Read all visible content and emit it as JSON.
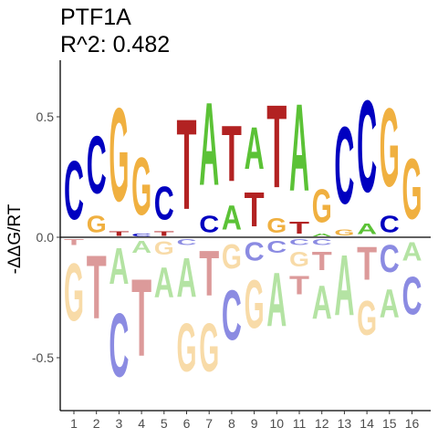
{
  "chart_data": {
    "type": "sequence-logo",
    "title": "PTF1A",
    "subtitle": "R^2: 0.482",
    "ylabel": "-ΔΔG/RT",
    "xlabel": "",
    "ylim": [
      -0.62,
      0.68
    ],
    "yticks": [
      {
        "value": 0.5,
        "label": "0.5"
      },
      {
        "value": 0.0,
        "label": "0.0"
      },
      {
        "value": -0.5,
        "label": "-0.5"
      }
    ],
    "positions": [
      "1",
      "2",
      "3",
      "4",
      "5",
      "6",
      "7",
      "8",
      "9",
      "10",
      "11",
      "12",
      "13",
      "14",
      "15",
      "16"
    ],
    "colors": {
      "A": "#5bc236",
      "C": "#0000c0",
      "G": "#f0b040",
      "T": "#b22222"
    },
    "columns": [
      {
        "pos": 1,
        "above": [
          {
            "base": "C",
            "value": 0.39
          }
        ],
        "below": [
          {
            "base": "T",
            "value": -0.04
          },
          {
            "base": "G",
            "value": -0.38
          }
        ]
      },
      {
        "pos": 2,
        "above": [
          {
            "base": "G",
            "value": 0.11
          },
          {
            "base": "C",
            "value": 0.38
          }
        ],
        "below": [
          {
            "base": "T",
            "value": -0.42
          }
        ]
      },
      {
        "pos": 3,
        "above": [
          {
            "base": "T",
            "value": 0.03
          },
          {
            "base": "G",
            "value": 0.62
          }
        ],
        "below": [
          {
            "base": "A",
            "value": -0.24
          },
          {
            "base": "C",
            "value": -0.42
          }
        ]
      },
      {
        "pos": 4,
        "above": [
          {
            "base": "C",
            "value": 0.02
          },
          {
            "base": "G",
            "value": 0.38
          }
        ],
        "below": [
          {
            "base": "A",
            "value": -0.08
          },
          {
            "base": "T",
            "value": -0.51
          }
        ]
      },
      {
        "pos": 5,
        "above": [
          {
            "base": "T",
            "value": 0.03
          },
          {
            "base": "C",
            "value": 0.22
          }
        ],
        "below": [
          {
            "base": "G",
            "value": -0.09
          },
          {
            "base": "A",
            "value": -0.2
          }
        ]
      },
      {
        "pos": 6,
        "above": [
          {
            "base": "T",
            "value": 0.6
          }
        ],
        "below": [
          {
            "base": "C",
            "value": -0.04
          },
          {
            "base": "A",
            "value": -0.26
          },
          {
            "base": "G",
            "value": -0.32
          }
        ]
      },
      {
        "pos": 7,
        "above": [
          {
            "base": "C",
            "value": 0.11
          },
          {
            "base": "A",
            "value": 0.55
          }
        ],
        "below": [
          {
            "base": "T",
            "value": -0.3
          },
          {
            "base": "G",
            "value": -0.32
          }
        ]
      },
      {
        "pos": 8,
        "above": [
          {
            "base": "A",
            "value": 0.16
          },
          {
            "base": "T",
            "value": 0.37
          }
        ],
        "below": [
          {
            "base": "G",
            "value": -0.16
          },
          {
            "base": "C",
            "value": -0.33
          }
        ]
      },
      {
        "pos": 9,
        "above": [
          {
            "base": "T",
            "value": 0.23
          },
          {
            "base": "A",
            "value": 0.28
          }
        ],
        "below": [
          {
            "base": "C",
            "value": -0.12
          },
          {
            "base": "G",
            "value": -0.32
          }
        ]
      },
      {
        "pos": 10,
        "above": [
          {
            "base": "G",
            "value": 0.1
          },
          {
            "base": "T",
            "value": 0.55
          }
        ],
        "below": [
          {
            "base": "C",
            "value": -0.08
          },
          {
            "base": "A",
            "value": -0.36
          }
        ]
      },
      {
        "pos": 11,
        "above": [
          {
            "base": "T",
            "value": 0.08
          },
          {
            "base": "A",
            "value": 0.58
          }
        ],
        "below": [
          {
            "base": "C",
            "value": -0.04
          },
          {
            "base": "G",
            "value": -0.1
          },
          {
            "base": "T",
            "value": -0.12
          }
        ]
      },
      {
        "pos": 12,
        "above": [
          {
            "base": "A",
            "value": 0.02
          },
          {
            "base": "G",
            "value": 0.22
          }
        ],
        "below": [
          {
            "base": "C",
            "value": -0.04
          },
          {
            "base": "T",
            "value": -0.12
          },
          {
            "base": "A",
            "value": -0.22
          }
        ]
      },
      {
        "pos": 13,
        "above": [
          {
            "base": "G",
            "value": 0.04
          },
          {
            "base": "C",
            "value": 0.51
          }
        ],
        "below": [
          {
            "base": "A",
            "value": -0.4
          }
        ]
      },
      {
        "pos": 14,
        "above": [
          {
            "base": "A",
            "value": 0.07
          },
          {
            "base": "C",
            "value": 0.61
          }
        ],
        "below": [
          {
            "base": "T",
            "value": -0.22
          },
          {
            "base": "G",
            "value": -0.23
          }
        ]
      },
      {
        "pos": 15,
        "above": [
          {
            "base": "C",
            "value": 0.11
          },
          {
            "base": "G",
            "value": 0.52
          }
        ],
        "below": [
          {
            "base": "A",
            "value": -0.19
          },
          {
            "base": "C",
            "value": -0.18
          }
        ]
      },
      {
        "pos": 16,
        "above": [
          {
            "base": "G",
            "value": 0.4
          }
        ],
        "below": [
          {
            "base": "A",
            "value": -0.12
          },
          {
            "base": "C",
            "value": -0.25
          }
        ]
      }
    ]
  }
}
